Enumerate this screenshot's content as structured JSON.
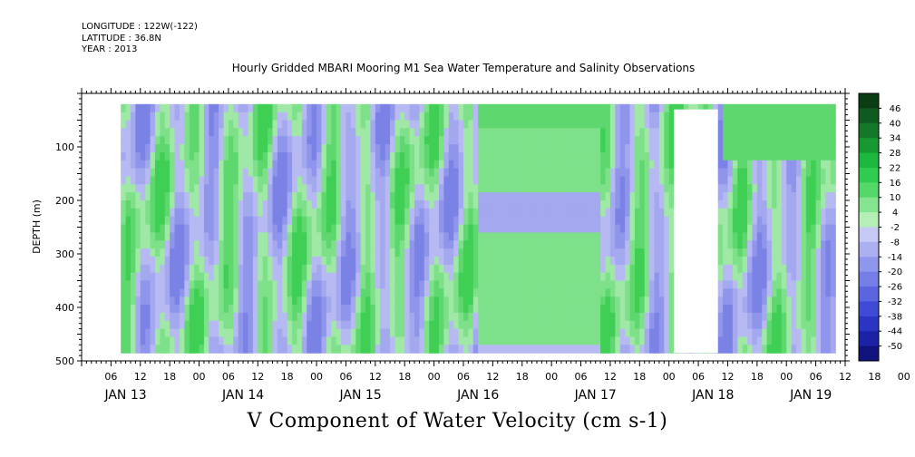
{
  "meta": {
    "longitude": "LONGITUDE : 122W(-122)",
    "latitude": "LATITUDE : 36.8N",
    "year": "YEAR : 2013"
  },
  "chart_data": {
    "type": "heatmap",
    "title": "Hourly Gridded MBARI Mooring M1 Sea Water Temperature and Salinity Observations",
    "xlabel": "V Component of Water Velocity (cm s-1)",
    "ylabel": "DEPTH (m)",
    "xlim_hours": [
      0,
      156
    ],
    "ylim": [
      500,
      0
    ],
    "y_ticks": [
      100,
      200,
      300,
      400,
      500
    ],
    "x_hour_ticks": [
      "06",
      "12",
      "18",
      "00",
      "06",
      "12",
      "18",
      "00",
      "06",
      "12",
      "18",
      "00",
      "06",
      "12",
      "18",
      "00",
      "06",
      "12",
      "18",
      "00",
      "06",
      "12",
      "18",
      "00",
      "06",
      "12",
      "18",
      "00",
      "06"
    ],
    "x_day_labels": [
      {
        "label": "JAN 13",
        "hour": 9
      },
      {
        "label": "JAN 14",
        "hour": 33
      },
      {
        "label": "JAN 15",
        "hour": 57
      },
      {
        "label": "JAN 16",
        "hour": 81
      },
      {
        "label": "JAN 17",
        "hour": 105
      },
      {
        "label": "JAN 18",
        "hour": 129
      },
      {
        "label": "JAN 19",
        "hour": 149
      }
    ],
    "colorbar_labels": [
      "46",
      "40",
      "34",
      "28",
      "22",
      "16",
      "10",
      "4",
      "-2",
      "-8",
      "-14",
      "-20",
      "-26",
      "-32",
      "-38",
      "-44",
      "-50"
    ],
    "colorbar_colors": [
      "#0b3d14",
      "#0f5a1e",
      "#137828",
      "#179832",
      "#1db83e",
      "#30cc50",
      "#55d86a",
      "#85e48f",
      "#b5efb6",
      "#c5c9f3",
      "#aab0f0",
      "#8f97ec",
      "#747ee6",
      "#5a65df",
      "#3f4bd6",
      "#2a35c4",
      "#1c22a6",
      "#10137e"
    ],
    "data_region_hours": [
      8,
      154
    ],
    "data_region_depth": [
      20,
      485
    ],
    "missing_data_hours": [
      121,
      130
    ],
    "missing_data_depth": [
      30,
      485
    ]
  }
}
